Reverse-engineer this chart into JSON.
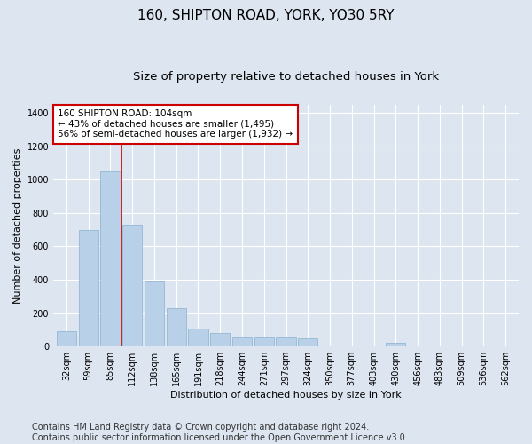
{
  "title": "160, SHIPTON ROAD, YORK, YO30 5RY",
  "subtitle": "Size of property relative to detached houses in York",
  "xlabel": "Distribution of detached houses by size in York",
  "ylabel": "Number of detached properties",
  "categories": [
    "32sqm",
    "59sqm",
    "85sqm",
    "112sqm",
    "138sqm",
    "165sqm",
    "191sqm",
    "218sqm",
    "244sqm",
    "271sqm",
    "297sqm",
    "324sqm",
    "350sqm",
    "377sqm",
    "403sqm",
    "430sqm",
    "456sqm",
    "483sqm",
    "509sqm",
    "536sqm",
    "562sqm"
  ],
  "values": [
    90,
    700,
    1050,
    730,
    390,
    230,
    110,
    80,
    55,
    55,
    55,
    50,
    0,
    0,
    0,
    20,
    0,
    0,
    0,
    0,
    0
  ],
  "bar_color": "#b8d0e8",
  "bar_edge_color": "#8ab0cc",
  "vline_color": "#cc0000",
  "annotation_text": "160 SHIPTON ROAD: 104sqm\n← 43% of detached houses are smaller (1,495)\n56% of semi-detached houses are larger (1,932) →",
  "annotation_box_facecolor": "#ffffff",
  "annotation_box_edgecolor": "#cc0000",
  "ylim": [
    0,
    1450
  ],
  "yticks": [
    0,
    200,
    400,
    600,
    800,
    1000,
    1200,
    1400
  ],
  "footnote_line1": "Contains HM Land Registry data © Crown copyright and database right 2024.",
  "footnote_line2": "Contains public sector information licensed under the Open Government Licence v3.0.",
  "background_color": "#dde5f0",
  "plot_background_color": "#dde5f0",
  "grid_color": "#ffffff",
  "title_fontsize": 11,
  "subtitle_fontsize": 9.5,
  "axis_label_fontsize": 8,
  "tick_fontsize": 7,
  "footnote_fontsize": 7,
  "annotation_fontsize": 7.5
}
